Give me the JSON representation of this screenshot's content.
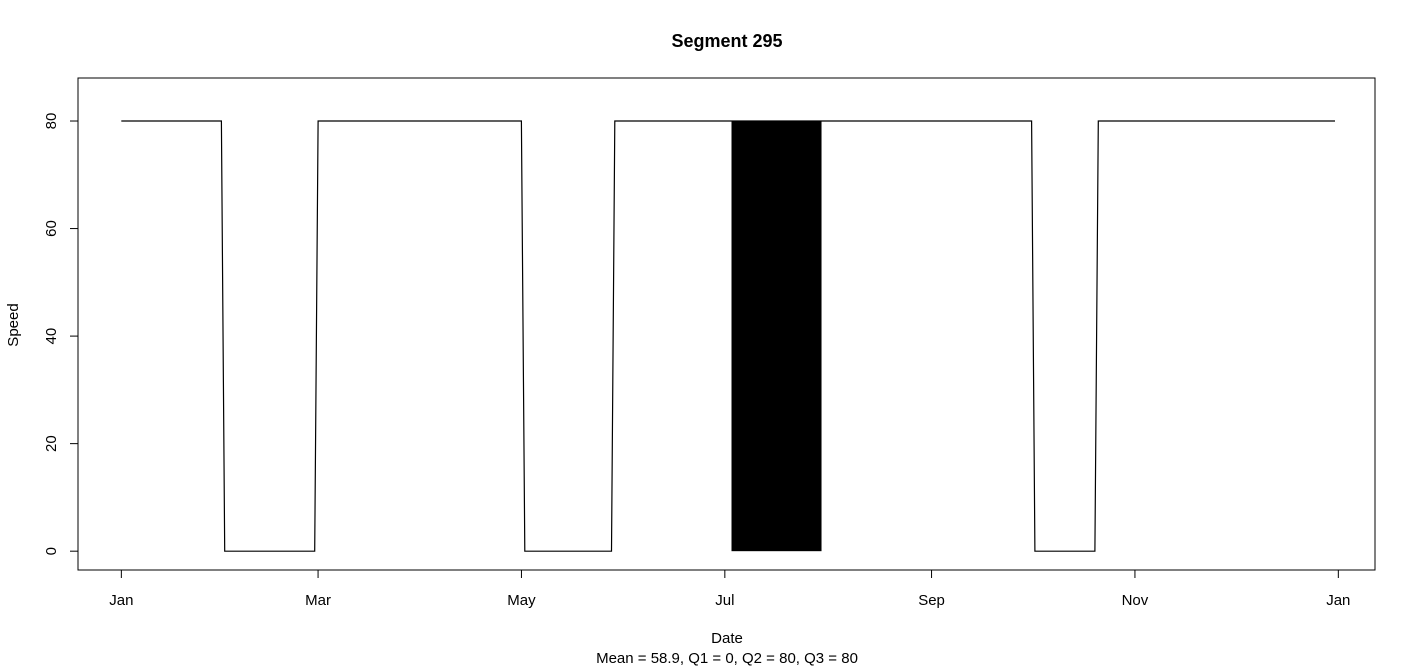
{
  "chart_data": {
    "type": "line",
    "title": "Segment 295",
    "xlabel": "Date",
    "ylabel": "Speed",
    "subtitle": "Mean = 58.9,  Q1 = 0,  Q2 = 80,  Q3 = 80",
    "x_ticks": [
      {
        "date": "2018-01-01",
        "label": "Jan"
      },
      {
        "date": "2018-03-01",
        "label": "Mar"
      },
      {
        "date": "2018-05-01",
        "label": "May"
      },
      {
        "date": "2018-07-01",
        "label": "Jul"
      },
      {
        "date": "2018-09-01",
        "label": "Sep"
      },
      {
        "date": "2018-11-01",
        "label": "Nov"
      },
      {
        "date": "2019-01-01",
        "label": "Jan"
      }
    ],
    "y_ticks": [
      0,
      20,
      40,
      60,
      80
    ],
    "xlim": [
      "2017-12-19",
      "2019-01-12"
    ],
    "ylim": [
      -3.5,
      88
    ],
    "grid": false,
    "series": [
      {
        "points": [
          [
            "2018-01-01",
            80
          ],
          [
            "2018-01-31",
            80
          ],
          [
            "2018-02-01",
            0
          ],
          [
            "2018-02-28",
            0
          ],
          [
            "2018-03-01",
            80
          ],
          [
            "2018-05-01",
            80
          ],
          [
            "2018-05-02",
            0
          ],
          [
            "2018-05-28",
            0
          ],
          [
            "2018-05-29",
            80
          ],
          [
            "2018-10-01",
            80
          ],
          [
            "2018-10-02",
            0
          ],
          [
            "2018-10-20",
            0
          ],
          [
            "2018-10-21",
            80
          ],
          [
            "2018-12-31",
            80
          ]
        ]
      }
    ],
    "oscillation_band": {
      "start": "2018-07-03",
      "end": "2018-07-30",
      "low": 0,
      "high": 80
    }
  }
}
